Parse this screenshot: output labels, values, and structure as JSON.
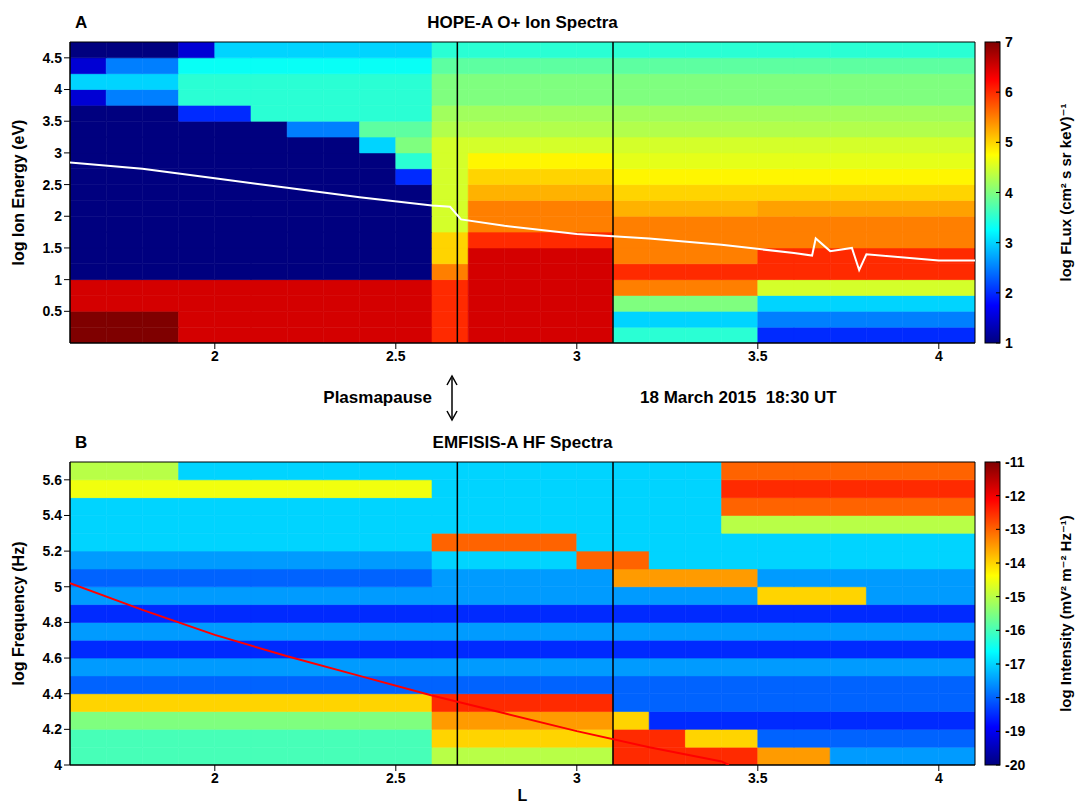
{
  "chart_data": [
    {
      "type": "heatmap",
      "letter": "A",
      "title": "HOPE-A O+ Ion Spectra",
      "y_label": "log Ion Energy (eV)",
      "xlim": [
        1.6,
        4.1
      ],
      "xticks": [
        2,
        2.5,
        3,
        3.5,
        4
      ],
      "ylim": [
        0,
        4.75
      ],
      "yticks": [
        0.5,
        1,
        1.5,
        2,
        2.5,
        3,
        3.5,
        4,
        4.5
      ],
      "x_edges": [
        1.6,
        1.7,
        1.8,
        1.9,
        2,
        2.1,
        2.2,
        2.3,
        2.4,
        2.5,
        2.6,
        2.7,
        2.8,
        2.9,
        3,
        3.1,
        3.2,
        3.3,
        3.4,
        3.5,
        3.6,
        3.7,
        3.8,
        3.9,
        4,
        4.1
      ],
      "y_edges": [
        0,
        0.25,
        0.5,
        0.75,
        1,
        1.25,
        1.5,
        1.75,
        2,
        2.25,
        2.5,
        2.75,
        3,
        3.25,
        3.5,
        3.75,
        4,
        4.25,
        4.5,
        4.75
      ],
      "cells": [
        [
          7,
          7,
          7,
          6.5,
          6.5,
          6.5,
          6.5,
          6.5,
          6.5,
          6.5,
          6,
          6.5,
          6.5,
          6.5,
          6.5,
          3.5,
          3.5,
          3.5,
          3.5,
          2,
          2,
          2,
          2,
          2,
          2
        ],
        [
          7,
          7,
          7,
          6.5,
          6.5,
          6.5,
          6.5,
          6.5,
          6.5,
          6.5,
          6,
          6.5,
          6.5,
          6.5,
          6.5,
          3,
          3,
          3,
          3,
          2.5,
          2.5,
          2.5,
          2.5,
          2.5,
          2.5
        ],
        [
          6.5,
          6.5,
          6.5,
          6.5,
          6.5,
          6.5,
          6.5,
          6.5,
          6.5,
          6.5,
          6,
          6.5,
          6.5,
          6.5,
          6.5,
          4,
          4,
          4,
          4,
          3,
          3,
          3,
          3,
          3,
          3
        ],
        [
          6.5,
          6.5,
          6.5,
          6.5,
          6.5,
          6.5,
          6.5,
          6.5,
          6.5,
          6.5,
          6,
          6.5,
          6.5,
          6.5,
          6.5,
          5.5,
          5.5,
          5.5,
          5.5,
          4.5,
          4.5,
          4.5,
          4.5,
          4.5,
          4.5
        ],
        [
          1,
          1,
          1,
          1,
          1,
          1,
          1,
          1,
          1,
          1,
          5.5,
          6.5,
          6.5,
          6.5,
          6.5,
          6,
          6,
          6,
          6,
          6,
          6,
          6,
          6,
          6,
          6
        ],
        [
          1,
          1,
          1,
          1,
          1,
          1,
          1,
          1,
          1,
          1,
          5,
          6.5,
          6.5,
          6.5,
          6.5,
          5.5,
          5.5,
          5.5,
          5.5,
          6,
          6,
          6,
          6,
          6,
          6
        ],
        [
          1,
          1,
          1,
          1,
          1,
          1,
          1,
          1,
          1,
          1,
          5,
          6,
          6,
          6,
          6,
          5.5,
          5.5,
          5.5,
          5.5,
          5.5,
          5.5,
          5.5,
          5.5,
          5.5,
          5.5
        ],
        [
          1,
          1,
          1,
          1,
          1,
          1,
          1,
          1,
          1,
          1,
          4.5,
          5.5,
          5.5,
          5.5,
          5.5,
          5.5,
          5.5,
          5.5,
          5.5,
          5.5,
          5.5,
          5.5,
          5.5,
          5.5,
          5.5
        ],
        [
          1,
          1,
          1,
          1,
          1,
          1,
          1,
          1,
          1,
          1,
          4.5,
          5.5,
          5.5,
          5.5,
          5.5,
          5.2,
          5.2,
          5.2,
          5.2,
          5.3,
          5.3,
          5.3,
          5.3,
          5.3,
          5.3
        ],
        [
          1,
          1,
          1,
          1,
          1,
          1,
          1,
          1,
          1,
          1,
          4.5,
          5.2,
          5.2,
          5.2,
          5.2,
          5,
          5,
          5,
          5,
          5,
          5,
          5,
          5,
          5,
          5
        ],
        [
          1,
          1,
          1,
          1,
          1,
          1,
          1,
          1,
          1,
          2,
          4.5,
          5,
          5,
          5,
          5,
          4.8,
          4.8,
          4.8,
          4.8,
          4.8,
          4.8,
          4.8,
          4.8,
          4.8,
          4.8
        ],
        [
          1,
          1,
          1,
          1,
          1,
          1,
          1,
          1,
          1,
          3.5,
          4.5,
          4.8,
          4.8,
          4.8,
          4.8,
          4.6,
          4.6,
          4.6,
          4.6,
          4.6,
          4.6,
          4.6,
          4.6,
          4.6,
          4.6
        ],
        [
          1,
          1,
          1,
          1,
          1,
          1,
          1,
          1,
          3,
          4,
          4.5,
          4.5,
          4.5,
          4.5,
          4.5,
          4.5,
          4.5,
          4.5,
          4.5,
          4.5,
          4.5,
          4.5,
          4.5,
          4.5,
          4.5
        ],
        [
          1,
          1,
          1,
          1,
          1,
          1,
          2.5,
          2.5,
          3.8,
          3.8,
          4.3,
          4.3,
          4.3,
          4.3,
          4.3,
          4.3,
          4.3,
          4.3,
          4.3,
          4.3,
          4.3,
          4.3,
          4.3,
          4.3,
          4.3
        ],
        [
          1,
          1,
          1,
          2,
          2,
          3.5,
          3.5,
          3.5,
          3.5,
          3.5,
          4.2,
          4.2,
          4.2,
          4.2,
          4.2,
          4.2,
          4.2,
          4.2,
          4.2,
          4.2,
          4.2,
          4.2,
          4.2,
          4.2,
          4.2
        ],
        [
          1.5,
          2.5,
          2.5,
          3.5,
          3.5,
          3.5,
          3.5,
          3.5,
          3.5,
          3.5,
          4,
          4,
          4,
          4,
          4,
          4,
          4,
          4,
          4,
          4,
          4,
          4,
          4,
          4,
          4
        ],
        [
          3,
          3,
          3,
          3.5,
          3.5,
          3.5,
          3.5,
          3.5,
          3.5,
          3.5,
          4,
          4,
          4,
          4,
          4,
          4,
          4,
          4,
          4,
          4,
          4,
          4,
          4,
          4,
          4
        ],
        [
          1.5,
          2.5,
          2.5,
          3.3,
          3.3,
          3.3,
          3.3,
          3.3,
          3.3,
          3.3,
          3.8,
          3.8,
          3.8,
          3.8,
          3.8,
          3.8,
          3.8,
          3.8,
          3.8,
          3.8,
          3.8,
          3.8,
          3.8,
          3.8,
          3.8
        ],
        [
          1,
          1,
          1,
          1.5,
          3,
          3,
          3,
          3,
          3,
          3,
          3.5,
          3.5,
          3.5,
          3.5,
          3.5,
          3.5,
          3.5,
          3.5,
          3.5,
          3.5,
          3.5,
          3.5,
          3.5,
          3.5,
          3.5
        ]
      ],
      "colorbar": {
        "label": "log FLux (cm² s sr keV)⁻¹",
        "range": [
          1,
          7
        ],
        "ticks": [
          1,
          2,
          3,
          4,
          5,
          6,
          7
        ],
        "colors": [
          "#00007f",
          "#0000ff",
          "#007fff",
          "#00ffff",
          "#7fff7f",
          "#ffff00",
          "#ff7f00",
          "#ff0000",
          "#7f0000"
        ]
      },
      "vlines": {
        "x": [
          2.67,
          3.1
        ],
        "color": "#000000"
      },
      "lines": [
        {
          "color": "#ffffff",
          "x": [
            1.6,
            1.8,
            2,
            2.2,
            2.4,
            2.6,
            2.65,
            2.68,
            2.8,
            3,
            3.2,
            3.4,
            3.6,
            3.65,
            3.66,
            3.7,
            3.76,
            3.78,
            3.8,
            4,
            4.1
          ],
          "y": [
            2.85,
            2.75,
            2.6,
            2.45,
            2.3,
            2.17,
            2.15,
            1.95,
            1.85,
            1.72,
            1.65,
            1.55,
            1.42,
            1.38,
            1.65,
            1.45,
            1.5,
            1.15,
            1.4,
            1.3,
            1.3
          ]
        }
      ]
    },
    {
      "type": "heatmap",
      "letter": "B",
      "title": "EMFISIS-A HF Spectra",
      "x_label": "L",
      "y_label": "log Frequency (Hz)",
      "xlim": [
        1.6,
        4.1
      ],
      "xticks": [
        2,
        2.5,
        3,
        3.5,
        4
      ],
      "ylim": [
        4,
        5.7
      ],
      "yticks": [
        4,
        4.2,
        4.4,
        4.6,
        4.8,
        5,
        5.2,
        5.4,
        5.6
      ],
      "x_edges": [
        1.6,
        1.7,
        1.8,
        1.9,
        2,
        2.1,
        2.2,
        2.3,
        2.4,
        2.5,
        2.6,
        2.7,
        2.8,
        2.9,
        3,
        3.1,
        3.2,
        3.3,
        3.4,
        3.5,
        3.6,
        3.7,
        3.8,
        3.9,
        4,
        4.1
      ],
      "y_edges": [
        4,
        4.1,
        4.2,
        4.3,
        4.4,
        4.5,
        4.6,
        4.7,
        4.8,
        4.9,
        5,
        5.1,
        5.2,
        5.3,
        5.4,
        5.5,
        5.6,
        5.7
      ],
      "cells": [
        [
          -16,
          -16,
          -16,
          -16,
          -16,
          -16,
          -16,
          -16,
          -16,
          -16,
          -15,
          -15,
          -15,
          -15,
          -15,
          -12.5,
          -12.5,
          -12.5,
          -12.5,
          -13.5,
          -13.5,
          -17.5,
          -17.5,
          -17.5,
          -17.5
        ],
        [
          -16,
          -16,
          -16,
          -16,
          -16,
          -16,
          -16,
          -16,
          -16,
          -16,
          -14,
          -14,
          -14,
          -14,
          -14,
          -12.5,
          -12.5,
          -14,
          -14,
          -18,
          -18,
          -18,
          -18,
          -18,
          -18
        ],
        [
          -15.5,
          -15.5,
          -15.5,
          -15.5,
          -15.5,
          -15.5,
          -15.5,
          -15.5,
          -15.5,
          -15.5,
          -13.5,
          -13.5,
          -13.5,
          -13.5,
          -13.5,
          -14,
          -18.5,
          -18.5,
          -18.5,
          -18.5,
          -18.5,
          -18.5,
          -18.5,
          -18.5,
          -18.5
        ],
        [
          -14,
          -14,
          -14,
          -14,
          -14,
          -14,
          -14,
          -14,
          -14,
          -14,
          -12.5,
          -12.5,
          -12.5,
          -12.5,
          -12.5,
          -18,
          -18,
          -18,
          -18,
          -18,
          -18,
          -18,
          -18,
          -18,
          -18
        ],
        [
          -18,
          -18,
          -18,
          -18,
          -18,
          -18,
          -18,
          -18,
          -18,
          -18,
          -18,
          -18,
          -18,
          -18,
          -18,
          -18,
          -18,
          -18,
          -18,
          -18,
          -18,
          -18,
          -18,
          -18,
          -18
        ],
        [
          -17.5,
          -17.5,
          -17.5,
          -17.5,
          -17.5,
          -17.5,
          -17.5,
          -17.5,
          -17.5,
          -17.5,
          -17.5,
          -17.5,
          -17.5,
          -17.5,
          -17.5,
          -17.5,
          -17.5,
          -17.5,
          -17.5,
          -17.5,
          -17.5,
          -17.5,
          -17.5,
          -17.5,
          -17.5
        ],
        [
          -18.5,
          -18.5,
          -18.5,
          -18.5,
          -18.5,
          -18.5,
          -18.5,
          -18.5,
          -18.5,
          -18.5,
          -18.5,
          -18.5,
          -18.5,
          -18.5,
          -18.5,
          -18.5,
          -18.5,
          -18.5,
          -18.5,
          -18.5,
          -18.5,
          -18.5,
          -18.5,
          -18.5,
          -18.5
        ],
        [
          -17.5,
          -17.5,
          -17.5,
          -17.5,
          -17.5,
          -17.5,
          -17.5,
          -17.5,
          -17.5,
          -17.5,
          -17.5,
          -17.5,
          -17.5,
          -17.5,
          -17.5,
          -17.5,
          -17.5,
          -17.5,
          -17.5,
          -17.5,
          -17.5,
          -17.5,
          -17.5,
          -17.5,
          -17.5
        ],
        [
          -18.5,
          -18.5,
          -18.5,
          -18.5,
          -18.5,
          -18.5,
          -18.5,
          -18.5,
          -18.5,
          -18.5,
          -18.5,
          -18.5,
          -18.5,
          -18.5,
          -18.5,
          -18.5,
          -18.5,
          -18.5,
          -18.5,
          -18.5,
          -18.5,
          -18.5,
          -18.5,
          -18.5,
          -18.5
        ],
        [
          -17.5,
          -17.5,
          -17.5,
          -17.5,
          -17.5,
          -17.5,
          -17.5,
          -17.5,
          -17.5,
          -17.5,
          -17.5,
          -17.5,
          -17.5,
          -17.5,
          -17.5,
          -17.5,
          -17.5,
          -17.5,
          -17.5,
          -14,
          -14,
          -14,
          -17.5,
          -17.5,
          -17.5
        ],
        [
          -18,
          -18,
          -18,
          -18,
          -18,
          -18,
          -18,
          -18,
          -18,
          -18,
          -17.5,
          -17.5,
          -17.5,
          -17.5,
          -17.5,
          -13.5,
          -13.5,
          -13.5,
          -13.5,
          -17.5,
          -17.5,
          -17.5,
          -17.5,
          -17.5,
          -17.5
        ],
        [
          -17.5,
          -17.5,
          -17.5,
          -17.5,
          -17.5,
          -17.5,
          -17.5,
          -17.5,
          -17.5,
          -17.5,
          -17,
          -17,
          -17,
          -17,
          -13,
          -13,
          -17,
          -17,
          -17,
          -17,
          -17,
          -17,
          -17,
          -17,
          -17
        ],
        [
          -17,
          -17,
          -17,
          -17,
          -17,
          -17,
          -17,
          -17,
          -17,
          -17,
          -13,
          -13,
          -13,
          -13,
          -17,
          -17,
          -17,
          -17,
          -17,
          -17,
          -17,
          -17,
          -17,
          -17,
          -17
        ],
        [
          -17,
          -17,
          -17,
          -17,
          -17,
          -17,
          -17,
          -17,
          -17,
          -17,
          -17,
          -17,
          -17,
          -17,
          -17,
          -17,
          -17,
          -17,
          -15,
          -15,
          -15,
          -15,
          -15,
          -15,
          -15
        ],
        [
          -17,
          -17,
          -17,
          -17,
          -17,
          -17,
          -17,
          -17,
          -17,
          -17,
          -17,
          -17,
          -17,
          -17,
          -17,
          -17,
          -17,
          -17,
          -13,
          -13,
          -13,
          -13,
          -13,
          -13,
          -13
        ],
        [
          -14.5,
          -14.5,
          -14.5,
          -14.5,
          -14.5,
          -14.5,
          -14.5,
          -14.5,
          -14.5,
          -14.5,
          -17,
          -17,
          -17,
          -17,
          -17,
          -17,
          -17,
          -17,
          -12.5,
          -12.5,
          -12.5,
          -12.5,
          -12.5,
          -12.5,
          -12.5
        ],
        [
          -15,
          -15,
          -15,
          -17,
          -17,
          -17,
          -17,
          -17,
          -17,
          -17,
          -17,
          -17,
          -17,
          -17,
          -17,
          -17,
          -17,
          -17,
          -13,
          -13,
          -13,
          -13,
          -13,
          -13,
          -13
        ]
      ],
      "colorbar": {
        "label": "log Intensity (mV² m⁻² Hz⁻¹)",
        "range": [
          -20,
          -11
        ],
        "ticks": [
          -20,
          -19,
          -18,
          -17,
          -16,
          -15,
          -14,
          -13,
          -12,
          -11
        ],
        "colors": [
          "#00007f",
          "#0000ff",
          "#007fff",
          "#00ffff",
          "#7fff7f",
          "#ffff00",
          "#ff7f00",
          "#ff0000",
          "#7f0000"
        ]
      },
      "vlines": {
        "x": [
          2.67,
          3.1
        ],
        "color": "#000000"
      },
      "lines": [
        {
          "color": "#ff0000",
          "x": [
            1.6,
            1.8,
            2,
            2.2,
            2.4,
            2.6,
            2.8,
            3,
            3.2,
            3.4,
            3.42
          ],
          "y": [
            5.02,
            4.87,
            4.73,
            4.61,
            4.5,
            4.39,
            4.29,
            4.19,
            4.1,
            4.02,
            4
          ]
        }
      ]
    }
  ],
  "annotations": [
    "Plasmapause",
    "18 March 2015  18:30 UT"
  ]
}
